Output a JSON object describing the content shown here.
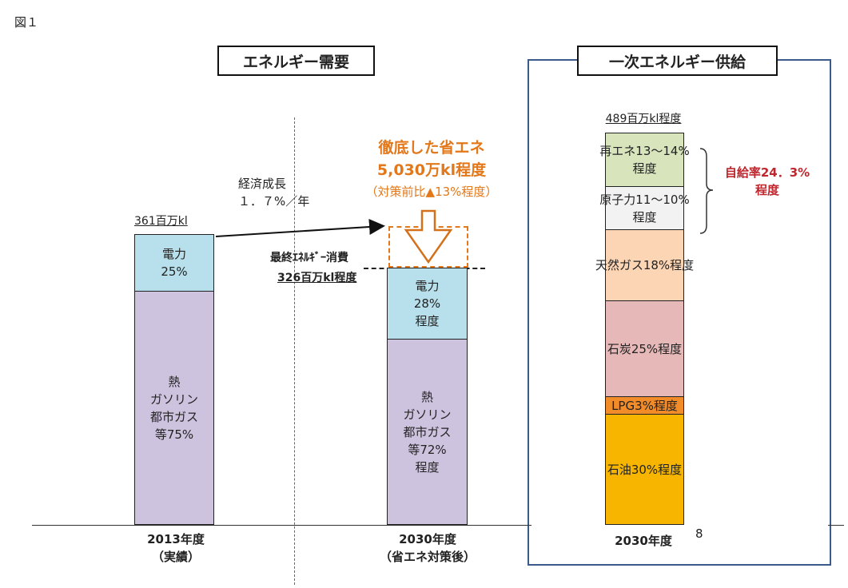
{
  "figure_label": "図１",
  "demand": {
    "title": "エネルギー需要",
    "growth_label": "経済成長\n１．７%／年",
    "savings_line1": "徹底した省エネ",
    "savings_line2": "5,030万kl程度",
    "savings_line3": "（対策前比▲13%程度）",
    "final_consumption_label": "最終ｴﾈﾙｷﾞｰ消費"
  },
  "supply": {
    "title": "一次エネルギー供給",
    "self_sufficiency": "自給率24．3%\n程度"
  },
  "page_number": "8",
  "chart_data": [
    {
      "type": "bar",
      "title": "エネルギー需要",
      "unit": "百万kl",
      "categories": [
        "2013年度\n（実績）",
        "2030年度\n（省エネ対策後）"
      ],
      "totals": [
        361,
        326
      ],
      "total_labels": [
        "361百万kl",
        "326百万kl程度"
      ],
      "series": [
        {
          "name": "電力",
          "values": [
            25,
            28
          ],
          "labels": [
            "電力\n25%",
            "電力\n28%\n程度"
          ],
          "color": "#b8e0ec"
        },
        {
          "name": "熱・ガソリン・都市ガス等",
          "values": [
            75,
            72
          ],
          "labels": [
            "熱\nガソリン\n都市ガス\n等75%",
            "熱\nガソリン\n都市ガス\n等72%\n程度"
          ],
          "color": "#cdc3df"
        }
      ],
      "savings_mkl": 50.3
    },
    {
      "type": "bar",
      "title": "一次エネルギー供給",
      "unit": "百万kl",
      "categories": [
        "2030年度"
      ],
      "totals": [
        489
      ],
      "total_labels": [
        "489百万kl程度"
      ],
      "series": [
        {
          "name": "石油",
          "values": [
            30
          ],
          "label": "石油30%程度",
          "color": "#f7b500"
        },
        {
          "name": "LPG",
          "values": [
            3
          ],
          "label": "LPG3%程度",
          "color": "#f28c28"
        },
        {
          "name": "石炭",
          "values": [
            25
          ],
          "label": "石炭25%程度",
          "color": "#e6b8b7"
        },
        {
          "name": "天然ガス",
          "values": [
            18
          ],
          "label": "天然ガス18%程度",
          "color": "#fcd5b4"
        },
        {
          "name": "原子力",
          "values": [
            10.5
          ],
          "label": "原子力11～10%\n程度",
          "color": "#f2f2f2"
        },
        {
          "name": "再エネ",
          "values": [
            13.5
          ],
          "label": "再エネ13～14%\n程度",
          "color": "#d7e4bc"
        }
      ]
    }
  ]
}
